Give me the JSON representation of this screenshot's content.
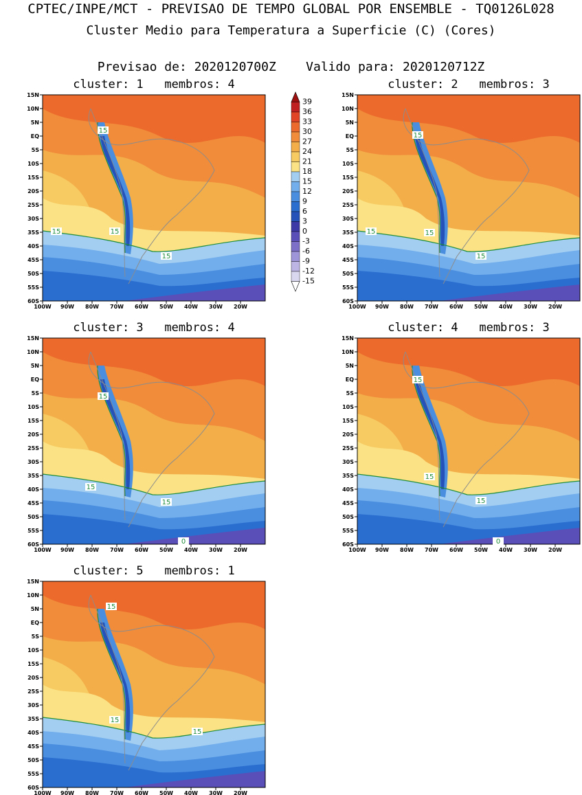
{
  "header": {
    "title": "CPTEC/INPE/MCT - PREVISAO DE TEMPO GLOBAL POR ENSEMBLE - TQ0126L028",
    "subtitle": "Cluster Medio para Temperatura a Superficie (C) (Cores)",
    "forecast": "Previsao de: 2020120700Z    Valido para: 2020120712Z"
  },
  "axes": {
    "lat_labels": [
      "15N",
      "10N",
      "5N",
      "EQ",
      "5S",
      "10S",
      "15S",
      "20S",
      "25S",
      "30S",
      "35S",
      "40S",
      "45S",
      "50S",
      "55S",
      "60S"
    ],
    "lon_labels": [
      "100W",
      "90W",
      "80W",
      "70W",
      "60W",
      "50W",
      "40W",
      "30W",
      "20W"
    ]
  },
  "colorbar": {
    "labels": [
      "39",
      "36",
      "33",
      "30",
      "27",
      "24",
      "21",
      "18",
      "15",
      "12",
      "9",
      "6",
      "3",
      "0",
      "-3",
      "-6",
      "-9",
      "-12",
      "-15"
    ],
    "colors": [
      "#ffffff",
      "#d9d6f0",
      "#bdb5e4",
      "#9e94d8",
      "#7c70c8",
      "#5a4eb8",
      "#3d3aa8",
      "#2452b8",
      "#2a6ed0",
      "#4a8ee0",
      "#72aeec",
      "#a3cef2",
      "#fbe385",
      "#f7ca62",
      "#f3ae4a",
      "#f08c3a",
      "#eb6a2c",
      "#e04424",
      "#c02020",
      "#9c1010"
    ]
  },
  "contour_labels": {
    "c1": [
      "15",
      "15",
      "15",
      "15"
    ],
    "c2": [
      "15",
      "15",
      "15",
      "15"
    ],
    "c3": [
      "15",
      "15",
      "15",
      "0"
    ],
    "c4": [
      "15",
      "15",
      "15",
      "0"
    ],
    "c5": [
      "15",
      "15",
      "15"
    ]
  },
  "panels": [
    {
      "id": "c1",
      "title": "cluster: 1   membros: 4"
    },
    {
      "id": "c2",
      "title": "cluster: 2   membros: 3"
    },
    {
      "id": "c3",
      "title": "cluster: 3   membros: 4"
    },
    {
      "id": "c4",
      "title": "cluster: 4   membros: 3"
    },
    {
      "id": "c5",
      "title": "cluster: 5   membros: 1"
    }
  ]
}
